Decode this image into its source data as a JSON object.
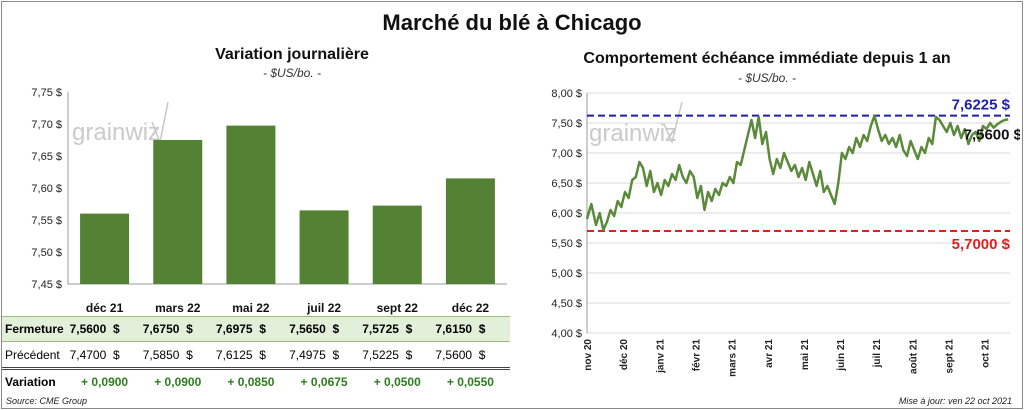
{
  "title": "Marché du blé à Chicago",
  "left": {
    "title": "Variation journalière",
    "unit": "- $US/bo. -",
    "watermark": "grainwiz"
  },
  "right": {
    "title": "Comportement échéance immédiate depuis 1 an",
    "unit": "- $US/bo. -",
    "watermark": "grainwiz",
    "label_high": "7,6225 $",
    "label_low": "5,7000 $",
    "label_last": "7,5600 $"
  },
  "table": {
    "rows": [
      {
        "label": "Fermeture",
        "values": [
          "7,5600",
          "7,6750",
          "7,6975",
          "7,5650",
          "7,5725",
          "7,6150"
        ],
        "suffix": "$"
      },
      {
        "label": "Précédent",
        "values": [
          "7,4700",
          "7,5850",
          "7,6125",
          "7,4975",
          "7,5225",
          "7,5600"
        ],
        "suffix": "$"
      },
      {
        "label": "Variation",
        "values": [
          "+ 0,0900",
          "+ 0,0900",
          "+ 0,0850",
          "+ 0,0675",
          "+ 0,0500",
          "+ 0,0550"
        ],
        "suffix": ""
      }
    ]
  },
  "footer": {
    "source": "Source: CME Group",
    "updated": "Mise à jour: ven 22 oct 2021"
  },
  "colors": {
    "bar": "#548235",
    "line": "#5a8a3a",
    "high": "#1f1fa8",
    "low": "#e02020",
    "variation": "#2e7d1e",
    "row_highlight": "#e2efd9"
  },
  "chart_data": [
    {
      "type": "bar",
      "title": "Variation journalière",
      "ylabel": "- $US/bo. -",
      "categories": [
        "déc 21",
        "mars 22",
        "mai 22",
        "juil 22",
        "sept 22",
        "déc 22"
      ],
      "values": [
        7.56,
        7.675,
        7.6975,
        7.565,
        7.5725,
        7.615
      ],
      "ylim": [
        7.45,
        7.75
      ],
      "yticks": [
        "7,45 $",
        "7,50 $",
        "7,55 $",
        "7,60 $",
        "7,65 $",
        "7,70 $",
        "7,75 $"
      ],
      "grid": false
    },
    {
      "type": "line",
      "title": "Comportement échéance immédiate depuis 1 an",
      "ylabel": "- $US/bo. -",
      "ylim": [
        4.0,
        8.0
      ],
      "yticks": [
        "4,00 $",
        "4,50 $",
        "5,00 $",
        "5,50 $",
        "6,00 $",
        "6,50 $",
        "7,00 $",
        "7,50 $",
        "8,00 $"
      ],
      "xticks": [
        "nov 20",
        "déc 20",
        "janv 21",
        "févr 21",
        "mars 21",
        "avr 21",
        "mai 21",
        "juin 21",
        "juil 21",
        "août 21",
        "sept 21",
        "oct 21"
      ],
      "x_range": [
        0,
        11.7
      ],
      "grid": true,
      "reference_lines": [
        {
          "value": 7.6225,
          "label": "7,6225 $",
          "style": "dashed"
        },
        {
          "value": 5.7,
          "label": "5,7000 $",
          "style": "dashed"
        }
      ],
      "last_value": 7.56,
      "x": [
        0,
        0.12,
        0.25,
        0.35,
        0.45,
        0.55,
        0.65,
        0.75,
        0.85,
        0.95,
        1.05,
        1.15,
        1.25,
        1.35,
        1.45,
        1.55,
        1.65,
        1.75,
        1.85,
        1.95,
        2.05,
        2.15,
        2.25,
        2.35,
        2.45,
        2.55,
        2.65,
        2.75,
        2.85,
        2.95,
        3.05,
        3.15,
        3.25,
        3.35,
        3.45,
        3.55,
        3.65,
        3.75,
        3.85,
        3.95,
        4.05,
        4.15,
        4.25,
        4.35,
        4.45,
        4.55,
        4.65,
        4.75,
        4.85,
        4.95,
        5.05,
        5.15,
        5.25,
        5.35,
        5.45,
        5.55,
        5.65,
        5.75,
        5.85,
        5.95,
        6.05,
        6.15,
        6.25,
        6.35,
        6.45,
        6.55,
        6.65,
        6.75,
        6.85,
        6.95,
        7.05,
        7.15,
        7.25,
        7.35,
        7.45,
        7.55,
        7.65,
        7.75,
        7.85,
        7.95,
        8.05,
        8.15,
        8.25,
        8.35,
        8.45,
        8.55,
        8.65,
        8.75,
        8.85,
        8.95,
        9.05,
        9.15,
        9.25,
        9.35,
        9.45,
        9.55,
        9.65,
        9.75,
        9.85,
        9.95,
        10.05,
        10.15,
        10.25,
        10.35,
        10.45,
        10.55,
        10.65,
        10.75,
        10.85,
        10.95,
        11.05,
        11.15,
        11.25,
        11.35,
        11.45,
        11.55,
        11.65
      ],
      "y": [
        5.9,
        6.15,
        5.8,
        6.0,
        5.72,
        5.85,
        6.05,
        5.95,
        6.2,
        6.1,
        6.35,
        6.25,
        6.55,
        6.6,
        6.85,
        6.75,
        6.45,
        6.7,
        6.35,
        6.5,
        6.3,
        6.55,
        6.45,
        6.65,
        6.55,
        6.8,
        6.6,
        6.5,
        6.7,
        6.6,
        6.25,
        6.45,
        6.05,
        6.35,
        6.2,
        6.4,
        6.3,
        6.5,
        6.45,
        6.6,
        6.5,
        6.85,
        6.8,
        7.05,
        7.3,
        7.55,
        7.25,
        7.6,
        7.15,
        7.35,
        6.9,
        6.65,
        6.9,
        6.75,
        7.0,
        6.85,
        6.7,
        6.8,
        6.6,
        6.75,
        6.55,
        6.85,
        6.65,
        6.45,
        6.7,
        6.35,
        6.45,
        6.3,
        6.15,
        6.5,
        7.0,
        6.9,
        7.1,
        7.0,
        7.25,
        7.1,
        7.3,
        7.2,
        7.45,
        7.62,
        7.4,
        7.2,
        7.3,
        7.15,
        7.25,
        7.1,
        7.3,
        7.05,
        6.95,
        7.2,
        7.05,
        6.9,
        7.1,
        7.0,
        7.25,
        7.15,
        7.6,
        7.55,
        7.45,
        7.35,
        7.5,
        7.3,
        7.45,
        7.25,
        7.4,
        7.15,
        7.3,
        7.35,
        7.2,
        7.45,
        7.4,
        7.5,
        7.42,
        7.48,
        7.52,
        7.55,
        7.56
      ]
    }
  ]
}
